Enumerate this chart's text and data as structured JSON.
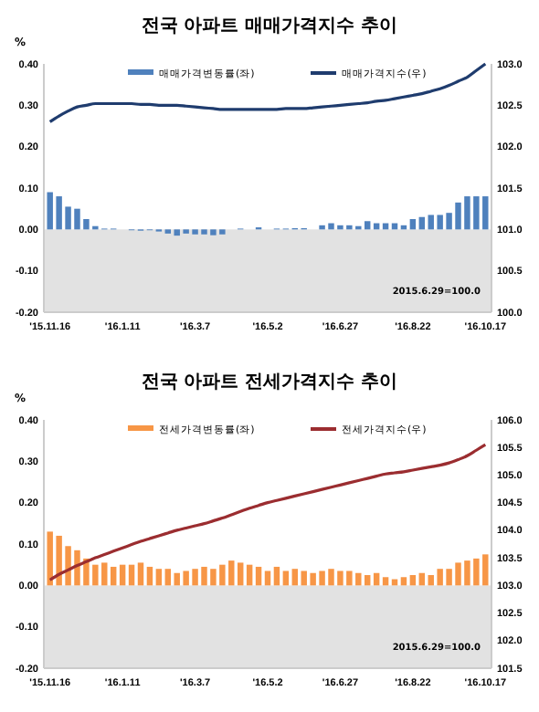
{
  "chart_data": [
    {
      "type": "bar",
      "title": "전국 아파트 매매가격지수 추이",
      "ylabel": "%",
      "legend": "top",
      "grid": false,
      "annotations": [
        "2015.6.29=100.0"
      ],
      "categories": [
        "'15.11.16",
        null,
        null,
        null,
        null,
        null,
        null,
        null,
        "'16.1.11",
        null,
        null,
        null,
        null,
        null,
        null,
        null,
        "'16.3.7",
        null,
        null,
        null,
        null,
        null,
        null,
        null,
        "'16.5.2",
        null,
        null,
        null,
        null,
        null,
        null,
        null,
        "'16.6.27",
        null,
        null,
        null,
        null,
        null,
        null,
        null,
        "'16.8.22",
        null,
        null,
        null,
        null,
        null,
        null,
        null,
        "'16.10.17"
      ],
      "ylim": [
        -0.2,
        0.4
      ],
      "yticks": [
        {
          "value": -0.2,
          "label": "-0.20"
        },
        {
          "value": -0.1,
          "label": "-0.10"
        },
        {
          "value": 0,
          "label": "0.00"
        },
        {
          "value": 0.1,
          "label": "0.10"
        },
        {
          "value": 0.2,
          "label": "0.20"
        },
        {
          "value": 0.3,
          "label": "0.30"
        },
        {
          "value": 0.4,
          "label": "0.40"
        }
      ],
      "y2lim": [
        100,
        103
      ],
      "y2ticks": [
        {
          "value": 100,
          "label": "100.0"
        },
        {
          "value": 100.5,
          "label": "100.5"
        },
        {
          "value": 101,
          "label": "101.0"
        },
        {
          "value": 101.5,
          "label": "101.5"
        },
        {
          "value": 102,
          "label": "102.0"
        },
        {
          "value": 102.5,
          "label": "102.5"
        },
        {
          "value": 103,
          "label": "103.0"
        }
      ],
      "bands": [
        {
          "axis": "y",
          "from": -0.2,
          "to": 0,
          "color": "#e2e2e2"
        }
      ],
      "series": [
        {
          "name": "매매가격변동률(좌)",
          "color": "#4f81bd",
          "values": [
            0.09,
            0.08,
            0.055,
            0.05,
            0.025,
            0.008,
            0.002,
            0.002,
            0,
            -0.002,
            -0.003,
            -0.002,
            -0.005,
            -0.01,
            -0.015,
            -0.01,
            -0.012,
            -0.012,
            -0.014,
            -0.012,
            0,
            0.002,
            0,
            0.005,
            0,
            0.002,
            0.002,
            0.003,
            0.003,
            0,
            0.01,
            0.015,
            0.01,
            0.01,
            0.008,
            0.02,
            0.015,
            0.015,
            0.015,
            0.01,
            0.025,
            0.03,
            0.035,
            0.035,
            0.04,
            0.065,
            0.08,
            0.08,
            0.08
          ]
        },
        {
          "name": "매매가격지수(우)",
          "type": "line",
          "axis": "y2",
          "color": "#1f3c6e",
          "values": [
            102.3,
            102.37,
            102.43,
            102.48,
            102.5,
            102.52,
            102.52,
            102.52,
            102.52,
            102.52,
            102.51,
            102.51,
            102.5,
            102.5,
            102.5,
            102.49,
            102.48,
            102.47,
            102.46,
            102.45,
            102.45,
            102.45,
            102.45,
            102.45,
            102.45,
            102.45,
            102.46,
            102.46,
            102.46,
            102.47,
            102.48,
            102.49,
            102.5,
            102.51,
            102.52,
            102.53,
            102.55,
            102.56,
            102.58,
            102.6,
            102.62,
            102.64,
            102.67,
            102.7,
            102.74,
            102.79,
            102.84,
            102.92,
            103.0
          ]
        }
      ]
    },
    {
      "type": "bar",
      "title": "전국 아파트  전세가격지수 추이",
      "ylabel": "%",
      "legend": "top",
      "grid": false,
      "annotations": [
        "2015.6.29=100.0"
      ],
      "categories": [
        "'15.11.16",
        null,
        null,
        null,
        null,
        null,
        null,
        null,
        "'16.1.11",
        null,
        null,
        null,
        null,
        null,
        null,
        null,
        "'16.3.7",
        null,
        null,
        null,
        null,
        null,
        null,
        null,
        "'16.5.2",
        null,
        null,
        null,
        null,
        null,
        null,
        null,
        "'16.6.27",
        null,
        null,
        null,
        null,
        null,
        null,
        null,
        "'16.8.22",
        null,
        null,
        null,
        null,
        null,
        null,
        null,
        "'16.10.17"
      ],
      "ylim": [
        -0.2,
        0.4
      ],
      "yticks": [
        {
          "value": -0.2,
          "label": "-0.20"
        },
        {
          "value": -0.1,
          "label": "-0.10"
        },
        {
          "value": 0,
          "label": "0.00"
        },
        {
          "value": 0.1,
          "label": "0.10"
        },
        {
          "value": 0.2,
          "label": "0.20"
        },
        {
          "value": 0.3,
          "label": "0.30"
        },
        {
          "value": 0.4,
          "label": "0.40"
        }
      ],
      "y2lim": [
        101.5,
        106
      ],
      "y2ticks": [
        {
          "value": 101.5,
          "label": "101.5"
        },
        {
          "value": 102,
          "label": "102.0"
        },
        {
          "value": 102.5,
          "label": "102.5"
        },
        {
          "value": 103,
          "label": "103.0"
        },
        {
          "value": 103.5,
          "label": "103.5"
        },
        {
          "value": 104,
          "label": "104.0"
        },
        {
          "value": 104.5,
          "label": "104.5"
        },
        {
          "value": 105,
          "label": "105.0"
        },
        {
          "value": 105.5,
          "label": "105.5"
        },
        {
          "value": 106,
          "label": "106.0"
        }
      ],
      "bands": [
        {
          "axis": "y",
          "from": -0.2,
          "to": 0,
          "color": "#e2e2e2"
        }
      ],
      "series": [
        {
          "name": "전세가격변동률(좌)",
          "color": "#f79646",
          "values": [
            0.13,
            0.12,
            0.095,
            0.085,
            0.065,
            0.05,
            0.055,
            0.045,
            0.05,
            0.05,
            0.055,
            0.045,
            0.04,
            0.04,
            0.03,
            0.035,
            0.04,
            0.045,
            0.04,
            0.05,
            0.06,
            0.055,
            0.05,
            0.045,
            0.035,
            0.045,
            0.035,
            0.04,
            0.035,
            0.03,
            0.035,
            0.04,
            0.035,
            0.035,
            0.03,
            0.025,
            0.03,
            0.02,
            0.015,
            0.02,
            0.025,
            0.03,
            0.025,
            0.04,
            0.04,
            0.055,
            0.06,
            0.065,
            0.075
          ]
        },
        {
          "name": "전세가격지수(우)",
          "type": "line",
          "axis": "y2",
          "color": "#9b2d30",
          "values": [
            103.1,
            103.2,
            103.28,
            103.36,
            103.43,
            103.5,
            103.56,
            103.62,
            103.68,
            103.74,
            103.8,
            103.85,
            103.9,
            103.95,
            104.0,
            104.04,
            104.08,
            104.12,
            104.17,
            104.22,
            104.28,
            104.34,
            104.4,
            104.45,
            104.5,
            104.54,
            104.58,
            104.62,
            104.66,
            104.7,
            104.74,
            104.78,
            104.82,
            104.86,
            104.9,
            104.94,
            104.98,
            105.02,
            105.04,
            105.06,
            105.09,
            105.12,
            105.15,
            105.18,
            105.22,
            105.28,
            105.35,
            105.45,
            105.55
          ]
        }
      ]
    }
  ]
}
